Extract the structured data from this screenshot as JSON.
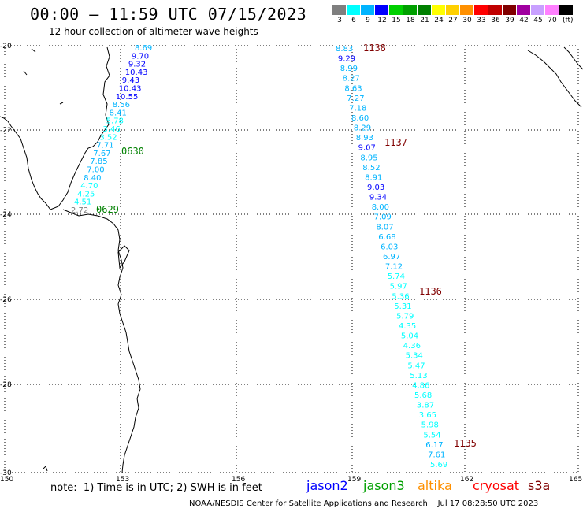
{
  "header": {
    "title": "00:00 – 11:59 UTC 07/15/2023",
    "subtitle": "12 hour collection of altimeter wave heights"
  },
  "legend": {
    "bins": [
      {
        "label": "3",
        "color": "#7f7f7f"
      },
      {
        "label": "6",
        "color": "#00ffff"
      },
      {
        "label": "9",
        "color": "#00b4ff"
      },
      {
        "label": "12",
        "color": "#0000ff"
      },
      {
        "label": "15",
        "color": "#00d000"
      },
      {
        "label": "18",
        "color": "#00a000"
      },
      {
        "label": "21",
        "color": "#008000"
      },
      {
        "label": "24",
        "color": "#ffff00"
      },
      {
        "label": "27",
        "color": "#ffd000"
      },
      {
        "label": "30",
        "color": "#ff9000"
      },
      {
        "label": "33",
        "color": "#ff0000"
      },
      {
        "label": "36",
        "color": "#c00000"
      },
      {
        "label": "39",
        "color": "#800000"
      },
      {
        "label": "42",
        "color": "#a000a0"
      },
      {
        "label": "45",
        "color": "#c8a0ff"
      },
      {
        "label": "70",
        "color": "#ff80ff"
      },
      {
        "label": "",
        "color": "#000000"
      }
    ],
    "unit": "(ft)"
  },
  "axes": {
    "lat_labels": [
      "-20",
      "-22",
      "-24",
      "-26",
      "-28",
      "-30"
    ],
    "lon_labels": [
      "150",
      "153",
      "156",
      "159",
      "162",
      "165"
    ]
  },
  "tracks": [
    {
      "time_label": "0630",
      "time_color": "#008000",
      "points": [
        {
          "v": "8.69",
          "c": "#00b4ff"
        },
        {
          "v": "9.70",
          "c": "#0000ff"
        },
        {
          "v": "9.32",
          "c": "#0000ff"
        },
        {
          "v": "10.43",
          "c": "#0000ff"
        },
        {
          "v": "9.43",
          "c": "#0000ff"
        },
        {
          "v": "10.43",
          "c": "#0000ff"
        },
        {
          "v": "10.55",
          "c": "#0000ff"
        },
        {
          "v": "8.56",
          "c": "#00b4ff"
        },
        {
          "v": "8.41",
          "c": "#00b4ff"
        },
        {
          "v": "5.78",
          "c": "#00ffff"
        },
        {
          "v": "3.46",
          "c": "#00ffff"
        },
        {
          "v": "3.52",
          "c": "#00ffff"
        },
        {
          "v": "7.71",
          "c": "#00b4ff"
        },
        {
          "v": "7.67",
          "c": "#00b4ff"
        },
        {
          "v": "7.85",
          "c": "#00b4ff"
        },
        {
          "v": "7.00",
          "c": "#00b4ff"
        },
        {
          "v": "8.40",
          "c": "#00b4ff"
        },
        {
          "v": "4.70",
          "c": "#00ffff"
        },
        {
          "v": "4.25",
          "c": "#00ffff"
        },
        {
          "v": "4.51",
          "c": "#00ffff"
        },
        {
          "v": "2.72",
          "c": "#7f7f7f"
        }
      ]
    },
    {
      "time_label": "0629",
      "time_color": "#008000",
      "points": []
    },
    {
      "time_label": "1138",
      "time_color": "#800000",
      "points": [
        {
          "v": "8.83",
          "c": "#00b4ff"
        },
        {
          "v": "9.29",
          "c": "#0000ff"
        },
        {
          "v": "8.99",
          "c": "#00b4ff"
        },
        {
          "v": "8.27",
          "c": "#00b4ff"
        },
        {
          "v": "8.63",
          "c": "#00b4ff"
        },
        {
          "v": "7.27",
          "c": "#00b4ff"
        },
        {
          "v": "7.18",
          "c": "#00b4ff"
        },
        {
          "v": "8.60",
          "c": "#00b4ff"
        },
        {
          "v": "8.29",
          "c": "#00b4ff"
        },
        {
          "v": "8.93",
          "c": "#00b4ff"
        },
        {
          "v": "9.07",
          "c": "#0000ff"
        },
        {
          "v": "8.95",
          "c": "#00b4ff"
        },
        {
          "v": "8.52",
          "c": "#00b4ff"
        },
        {
          "v": "8.91",
          "c": "#00b4ff"
        },
        {
          "v": "9.03",
          "c": "#0000ff"
        },
        {
          "v": "9.34",
          "c": "#0000ff"
        },
        {
          "v": "8.00",
          "c": "#00b4ff"
        },
        {
          "v": "7.09",
          "c": "#00b4ff"
        },
        {
          "v": "8.07",
          "c": "#00b4ff"
        },
        {
          "v": "6.68",
          "c": "#00b4ff"
        },
        {
          "v": "6.03",
          "c": "#00b4ff"
        },
        {
          "v": "6.97",
          "c": "#00b4ff"
        },
        {
          "v": "7.12",
          "c": "#00b4ff"
        },
        {
          "v": "5.74",
          "c": "#00ffff"
        },
        {
          "v": "5.97",
          "c": "#00ffff"
        },
        {
          "v": "5.36",
          "c": "#00ffff"
        },
        {
          "v": "5.31",
          "c": "#00ffff"
        },
        {
          "v": "5.79",
          "c": "#00ffff"
        },
        {
          "v": "4.35",
          "c": "#00ffff"
        },
        {
          "v": "5.04",
          "c": "#00ffff"
        },
        {
          "v": "4.36",
          "c": "#00ffff"
        },
        {
          "v": "5.34",
          "c": "#00ffff"
        },
        {
          "v": "5.47",
          "c": "#00ffff"
        },
        {
          "v": "5.13",
          "c": "#00ffff"
        },
        {
          "v": "4.86",
          "c": "#00ffff"
        },
        {
          "v": "5.68",
          "c": "#00ffff"
        },
        {
          "v": "3.87",
          "c": "#00ffff"
        },
        {
          "v": "3.65",
          "c": "#00ffff"
        },
        {
          "v": "5.98",
          "c": "#00ffff"
        },
        {
          "v": "5.54",
          "c": "#00ffff"
        },
        {
          "v": "6.17",
          "c": "#00b4ff"
        },
        {
          "v": "7.61",
          "c": "#00b4ff"
        },
        {
          "v": "5.69",
          "c": "#00ffff"
        }
      ]
    }
  ],
  "time_marks": [
    {
      "label": "1138",
      "color": "#800000"
    },
    {
      "label": "1137",
      "color": "#800000"
    },
    {
      "label": "1136",
      "color": "#800000"
    },
    {
      "label": "1135",
      "color": "#800000"
    },
    {
      "label": "0630",
      "color": "#008000"
    },
    {
      "label": "0629",
      "color": "#008000"
    }
  ],
  "footer": {
    "note": "note:  1) Time is in UTC; 2) SWH is in feet",
    "satellites": [
      {
        "name": "jason2",
        "color": "#0000ff"
      },
      {
        "name": "jason3",
        "color": "#00a000"
      },
      {
        "name": "altika",
        "color": "#ff9000"
      },
      {
        "name": "cryosat",
        "color": "#ff0000"
      },
      {
        "name": "s3a",
        "color": "#800000"
      }
    ],
    "credit": "NOAA/NESDIS Center for Satellite Applications and Research    Jul 17 08:28:50 UTC 2023"
  }
}
